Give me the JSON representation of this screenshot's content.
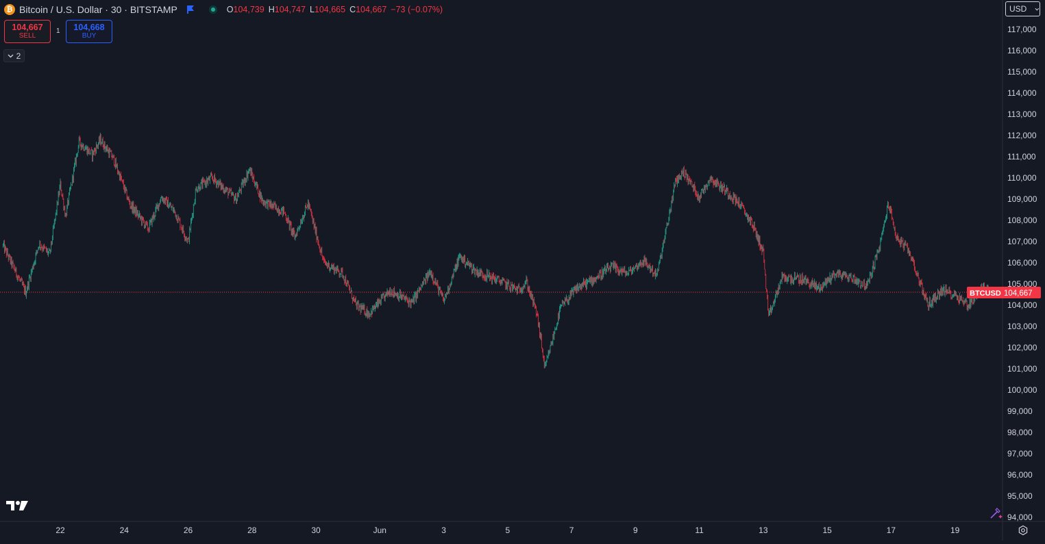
{
  "legend": {
    "symbol_title": "Bitcoin / U.S. Dollar · 30 · BITSTAMP",
    "open_label": "O",
    "open_value": "104,739",
    "high_label": "H",
    "high_value": "104,747",
    "low_label": "L",
    "low_value": "104,665",
    "close_label": "C",
    "close_value": "104,667",
    "change": "−73 (−0.07%)"
  },
  "trade": {
    "sell_price": "104,667",
    "sell_label": "SELL",
    "spread": "1",
    "buy_price": "104,668",
    "buy_label": "BUY"
  },
  "indicators_count": "2",
  "currency": "USD",
  "icons": {
    "symbol": "bitcoin-icon",
    "flag": "flag-icon",
    "status": "market-status-icon",
    "logo": "tradingview-logo-icon",
    "settings": "settings-icon",
    "magic": "magic-wand-icon",
    "dropdown": "chevron-down-icon"
  },
  "colors": {
    "background": "#151924",
    "up": "#22ab94",
    "down": "#f23645",
    "grid": "#1e222d",
    "text": "#d1d4dc"
  },
  "chart_data": {
    "type": "candlestick",
    "symbol": "BTCUSD",
    "interval": "30",
    "exchange": "BITSTAMP",
    "last_price": 104667,
    "last_price_label": "104,667",
    "ylim": [
      94000,
      117500
    ],
    "y_ticks": [
      "94,000",
      "95,000",
      "96,000",
      "97,000",
      "98,000",
      "99,000",
      "100,000",
      "101,000",
      "102,000",
      "103,000",
      "104,000",
      "105,000",
      "106,000",
      "107,000",
      "108,000",
      "109,000",
      "110,000",
      "111,000",
      "112,000",
      "113,000",
      "114,000",
      "115,000",
      "116,000",
      "117,000"
    ],
    "x_ticks": [
      "22",
      "24",
      "26",
      "28",
      "30",
      "Jun",
      "3",
      "5",
      "7",
      "9",
      "11",
      "13",
      "15",
      "17",
      "19"
    ],
    "x_range": [
      "2025-05-20",
      "2025-06-20"
    ],
    "close_path": [
      [
        "2025-05-20T05:00",
        106800
      ],
      [
        "2025-05-20T22:00",
        104600
      ],
      [
        "2025-05-21T08:00",
        106900
      ],
      [
        "2025-05-21T16:00",
        106400
      ],
      [
        "2025-05-22T00:00",
        109700
      ],
      [
        "2025-05-22T04:00",
        108200
      ],
      [
        "2025-05-22T14:00",
        111700
      ],
      [
        "2025-05-23T00:00",
        111100
      ],
      [
        "2025-05-23T06:00",
        111800
      ],
      [
        "2025-05-23T16:00",
        110900
      ],
      [
        "2025-05-24T04:00",
        108800
      ],
      [
        "2025-05-24T18:00",
        107600
      ],
      [
        "2025-05-25T04:00",
        109100
      ],
      [
        "2025-05-25T14:00",
        108400
      ],
      [
        "2025-05-26T00:00",
        107000
      ],
      [
        "2025-05-26T06:00",
        109500
      ],
      [
        "2025-05-26T18:00",
        110000
      ],
      [
        "2025-05-27T12:00",
        109000
      ],
      [
        "2025-05-27T22:00",
        110400
      ],
      [
        "2025-05-28T08:00",
        108900
      ],
      [
        "2025-05-29T00:00",
        108400
      ],
      [
        "2025-05-29T08:00",
        107200
      ],
      [
        "2025-05-29T18:00",
        108800
      ],
      [
        "2025-05-30T06:00",
        106000
      ],
      [
        "2025-05-30T20:00",
        105500
      ],
      [
        "2025-05-31T06:00",
        104000
      ],
      [
        "2025-05-31T16:00",
        103600
      ],
      [
        "2025-06-01T08:00",
        104700
      ],
      [
        "2025-06-02T00:00",
        104100
      ],
      [
        "2025-06-02T14:00",
        105600
      ],
      [
        "2025-06-03T00:00",
        104200
      ],
      [
        "2025-06-03T12:00",
        106300
      ],
      [
        "2025-06-04T00:00",
        105600
      ],
      [
        "2025-06-04T16:00",
        105200
      ],
      [
        "2025-06-05T08:00",
        104700
      ],
      [
        "2025-06-05T14:00",
        105100
      ],
      [
        "2025-06-05T22:00",
        103600
      ],
      [
        "2025-06-06T04:00",
        101000
      ],
      [
        "2025-06-06T16:00",
        103900
      ],
      [
        "2025-06-07T04:00",
        104800
      ],
      [
        "2025-06-07T16:00",
        105200
      ],
      [
        "2025-06-08T06:00",
        105800
      ],
      [
        "2025-06-08T18:00",
        105500
      ],
      [
        "2025-06-09T06:00",
        106100
      ],
      [
        "2025-06-09T16:00",
        105400
      ],
      [
        "2025-06-10T00:00",
        107800
      ],
      [
        "2025-06-10T06:00",
        109800
      ],
      [
        "2025-06-10T12:00",
        110300
      ],
      [
        "2025-06-11T00:00",
        109100
      ],
      [
        "2025-06-11T08:00",
        110000
      ],
      [
        "2025-06-11T20:00",
        109400
      ],
      [
        "2025-06-12T06:00",
        108800
      ],
      [
        "2025-06-12T16:00",
        107800
      ],
      [
        "2025-06-13T00:00",
        106500
      ],
      [
        "2025-06-13T04:00",
        103400
      ],
      [
        "2025-06-13T14:00",
        105300
      ],
      [
        "2025-06-14T06:00",
        105200
      ],
      [
        "2025-06-14T18:00",
        104800
      ],
      [
        "2025-06-15T06:00",
        105500
      ],
      [
        "2025-06-15T18:00",
        105300
      ],
      [
        "2025-06-16T06:00",
        104900
      ],
      [
        "2025-06-16T16:00",
        106900
      ],
      [
        "2025-06-16T22:00",
        108800
      ],
      [
        "2025-06-17T04:00",
        107200
      ],
      [
        "2025-06-17T14:00",
        106500
      ],
      [
        "2025-06-17T22:00",
        105000
      ],
      [
        "2025-06-18T04:00",
        104000
      ],
      [
        "2025-06-18T14:00",
        104700
      ],
      [
        "2025-06-19T00:00",
        104500
      ],
      [
        "2025-06-19T10:00",
        104000
      ],
      [
        "2025-06-19T20:00",
        104800
      ],
      [
        "2025-06-20T06:00",
        104667
      ]
    ]
  }
}
